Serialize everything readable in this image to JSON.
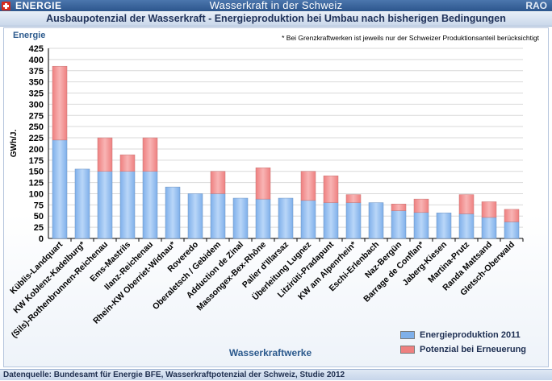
{
  "app": {
    "brand": "ENERGIE",
    "title": "Wasserkraft in der Schweiz",
    "corner": "RAO"
  },
  "subtitle": "Ausbaupotenzial der Wasserkraft - Energieproduktion bei Umbau nach bisherigen Bedingungen",
  "energie_label": "Energie",
  "footnote": "* Bei Grenzkraftwerken ist jeweils nur der Schweizer Produktionsanteil berücksichtigt",
  "footer": "Datenquelle: Bundesamt für Energie BFE,  Wasserkraftpotenzial der Schweiz, Studie 2012",
  "colors": {
    "production": "#7fb0ea",
    "potential": "#ee8080"
  },
  "chart_data": {
    "type": "bar",
    "stacked": true,
    "ylabel": "GWh/J.",
    "xlabel": "Wasserkraftwerke",
    "ylim": [
      0,
      425
    ],
    "yticks": [
      0,
      25,
      50,
      75,
      100,
      125,
      150,
      175,
      200,
      225,
      250,
      275,
      300,
      325,
      350,
      375,
      400,
      425
    ],
    "grid": true,
    "legend_position": "bottom-right",
    "categories": [
      "Küblis-Landquart",
      "KW Koblenz-Kadelburg*",
      "(Sils)-Rothenbrunnen-Reichenau",
      "Ems-Mastrils",
      "Ilanz-Reichenau",
      "Rhein-KW Oberriet-Widnau*",
      "Roveredo",
      "Oberaletsch / Gebidem",
      "Adduction de Zinal",
      "Massongex-Bex-Rhône",
      "Palier d'Illarsaz",
      "Überleitung Lugnez",
      "Litzirüti-Pradapunt",
      "KW am Alpenrhein*",
      "Eschi-Erlenbach",
      "Naz-Bergün",
      "Barrage de Conflan*",
      "Jaberg-Kiesen",
      "Martina-Prutz",
      "Randa Mattsand",
      "Gletsch-Oberwald"
    ],
    "series": [
      {
        "name": "Energieproduktion 2011",
        "values": [
          220,
          155,
          150,
          150,
          150,
          115,
          100,
          100,
          90,
          88,
          90,
          85,
          80,
          80,
          80,
          62,
          58,
          57,
          55,
          47,
          37
        ]
      },
      {
        "name": "Potenzial bei Erneuerung",
        "values": [
          165,
          0,
          75,
          37,
          75,
          0,
          0,
          50,
          0,
          70,
          0,
          65,
          60,
          18,
          0,
          15,
          30,
          0,
          43,
          35,
          28
        ]
      }
    ]
  }
}
